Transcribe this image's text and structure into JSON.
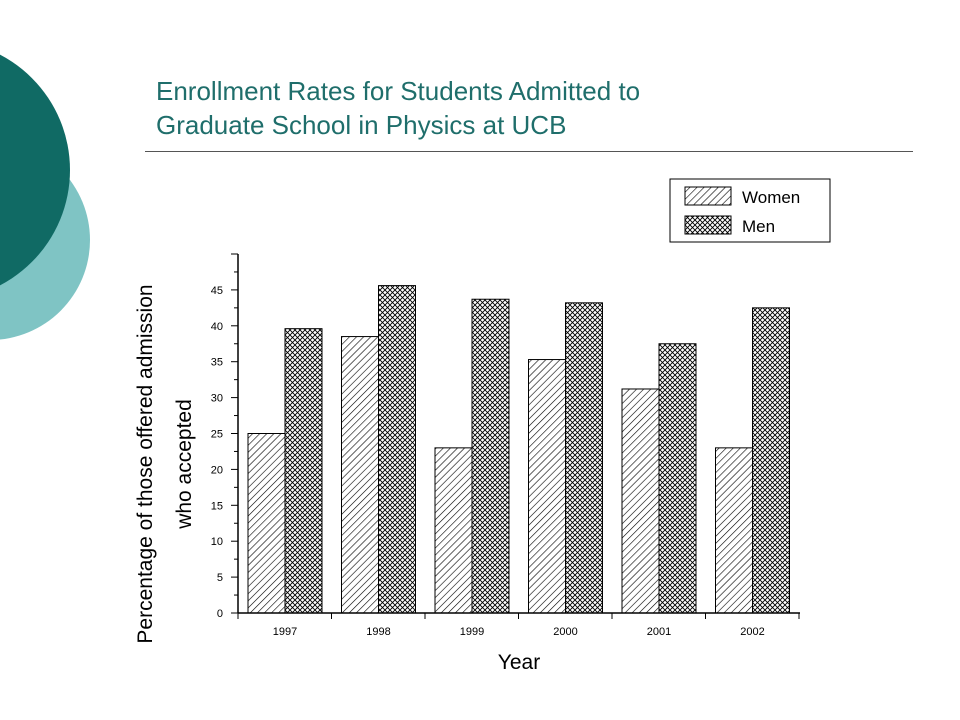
{
  "slide": {
    "title_line1": "Enrollment Rates for Students Admitted to",
    "title_line2": "Graduate School in Physics at UCB"
  },
  "theme": {
    "title_color": "#1f6e6b",
    "circle_dark": "#106a64",
    "circle_light": "#7fc4c4"
  },
  "chart_data": {
    "type": "bar",
    "categories": [
      "1997",
      "1998",
      "1999",
      "2000",
      "2001",
      "2002"
    ],
    "series": [
      {
        "name": "Women",
        "pattern": "diagonal-hatch",
        "values": [
          25,
          38.5,
          23,
          35.3,
          31.2,
          23
        ]
      },
      {
        "name": "Men",
        "pattern": "cross-hatch",
        "values": [
          39.6,
          45.6,
          43.7,
          43.2,
          37.5,
          42.5
        ]
      }
    ],
    "xlabel": "Year",
    "ylabel_line1": "Percentage of those offered admission",
    "ylabel_line2": "who accepted",
    "ylim": [
      0,
      50
    ],
    "yticks": [
      0,
      5,
      10,
      15,
      20,
      25,
      30,
      35,
      40,
      45
    ],
    "legend_position": "top-right",
    "grid": false
  }
}
